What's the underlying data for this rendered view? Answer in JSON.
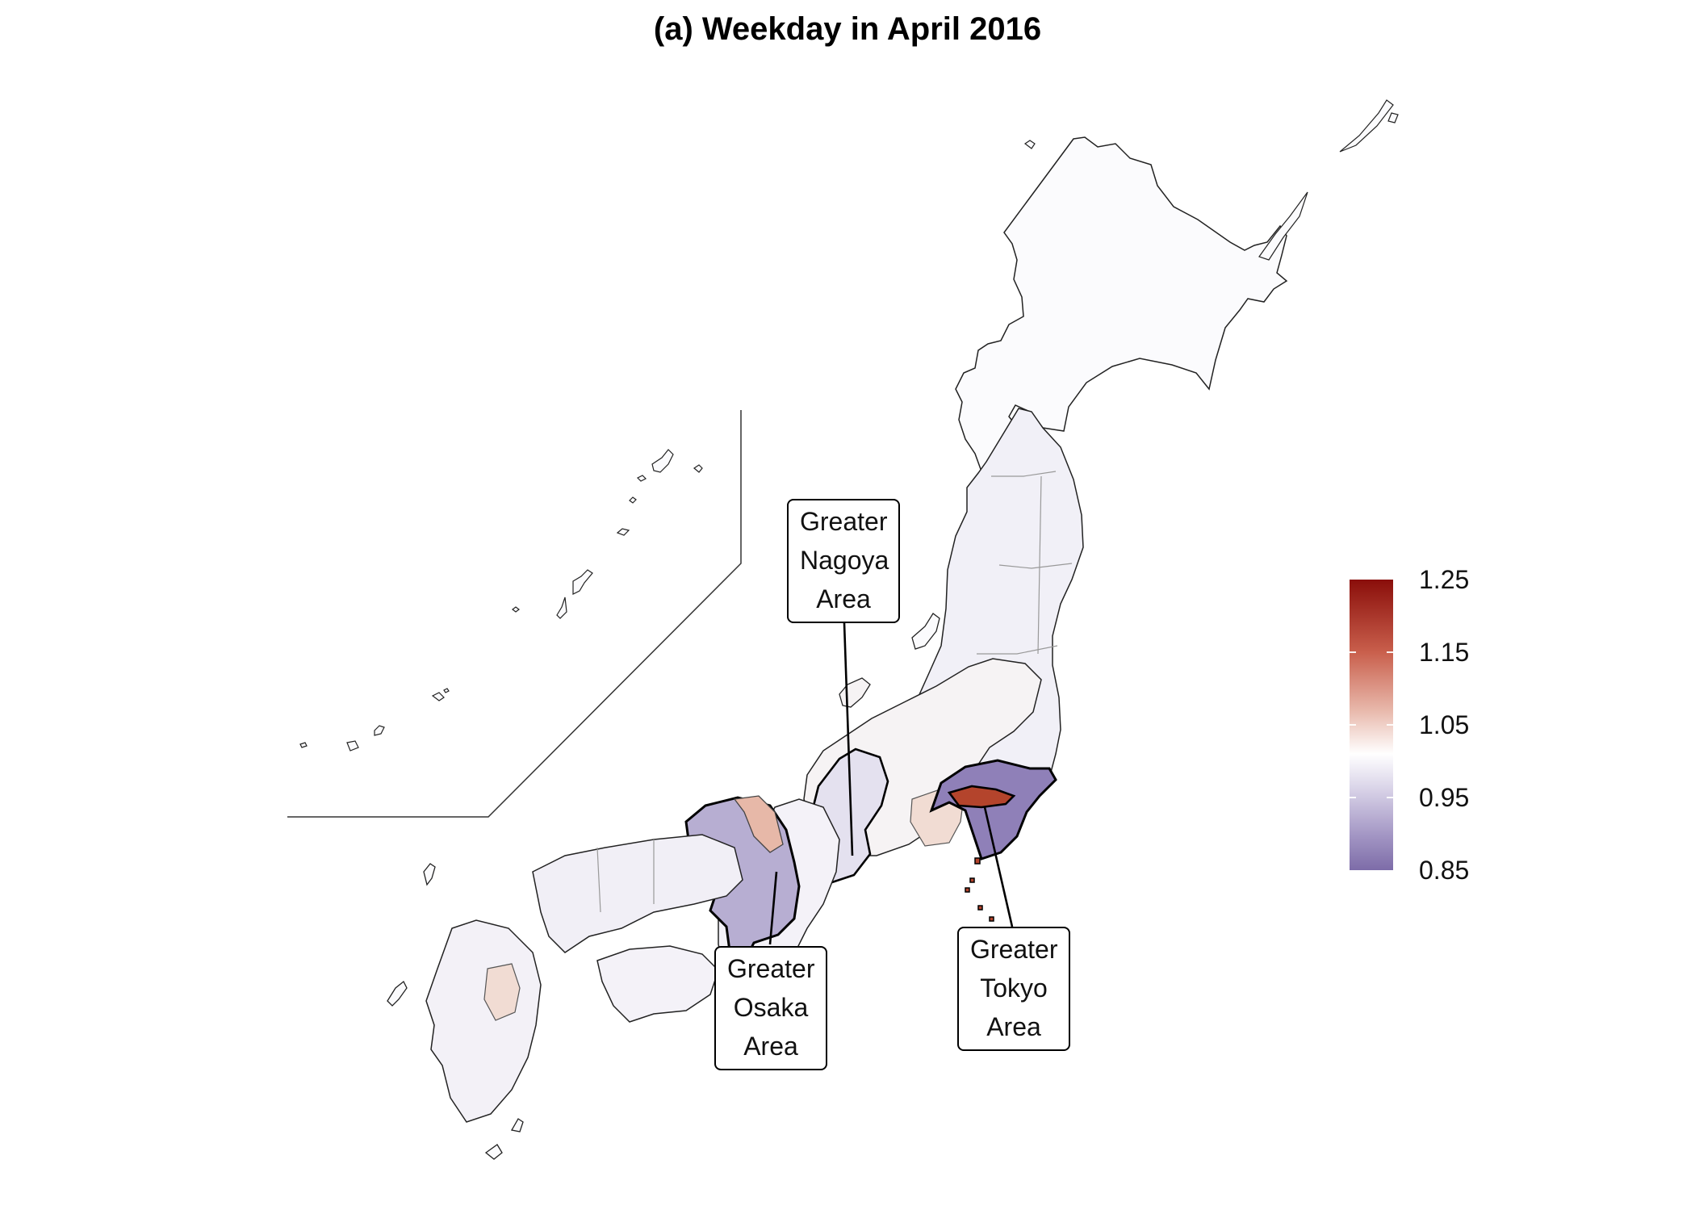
{
  "title": "(a) Weekday in April 2016",
  "callouts": {
    "nagoya": [
      "Greater",
      "Nagoya",
      "Area"
    ],
    "osaka": [
      "Greater",
      "Osaka",
      "Area"
    ],
    "tokyo": [
      "Greater",
      "Tokyo",
      "Area"
    ]
  },
  "legend": {
    "ticks": [
      "1.25",
      "1.15",
      "1.05",
      "0.95",
      "0.85"
    ],
    "min": 0.85,
    "max": 1.25,
    "colors": {
      "high": "#8a0e0a",
      "mid": "#ffffff",
      "low": "#7d6ca8"
    }
  },
  "regions": {
    "hokkaido": "#fbfbfd",
    "tohoku": "#f1f0f7",
    "tokyo_area": "#8f80b8",
    "tokyo_core": "#b4442c",
    "nagoya_area": "#e4e1ef",
    "osaka_area": "#b7aed2",
    "kyoto_strip": "#e7b8a8",
    "chugoku": "#f1eff6",
    "shikoku": "#f4f2f8",
    "kyushu": "#f3f1f7",
    "kyushu_warm": "#f1dcd3"
  }
}
